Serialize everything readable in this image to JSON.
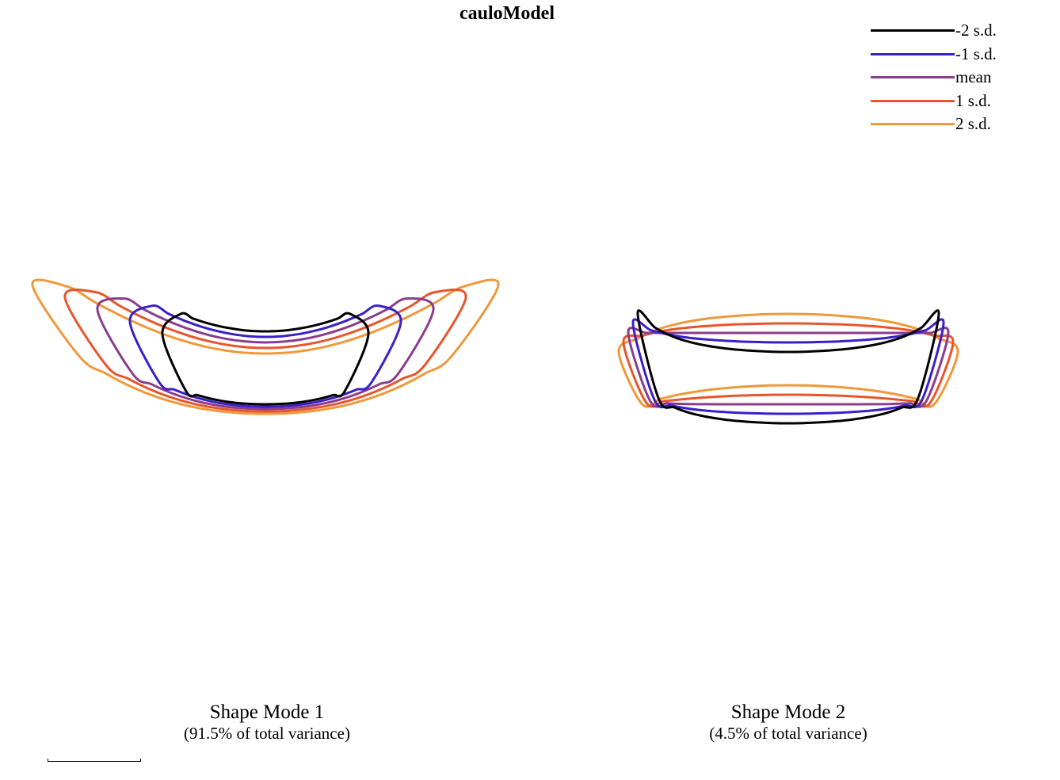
{
  "chart_data": {
    "type": "line",
    "title": "cauloModel",
    "legend": {
      "placement": "top-right",
      "entries": [
        {
          "label": "-2 s.d.",
          "color": "#000000"
        },
        {
          "label": "-1 s.d.",
          "color": "#3a1fc8"
        },
        {
          "label": "mean",
          "color": "#8a3d8c"
        },
        {
          "label": "1 s.d.",
          "color": "#e8552c"
        },
        {
          "label": "2 s.d.",
          "color": "#f0983a"
        }
      ]
    },
    "panels": [
      {
        "title": "Shape Mode 1",
        "subtitle": "(91.5% of total variance)",
        "variance_percent": 91.5,
        "mode": 1
      },
      {
        "title": "Shape Mode 2",
        "subtitle": "(4.5% of total variance)",
        "variance_percent": 4.5,
        "mode": 2
      }
    ],
    "sd_levels": [
      -2,
      -1,
      0,
      1,
      2
    ],
    "grid": false
  }
}
